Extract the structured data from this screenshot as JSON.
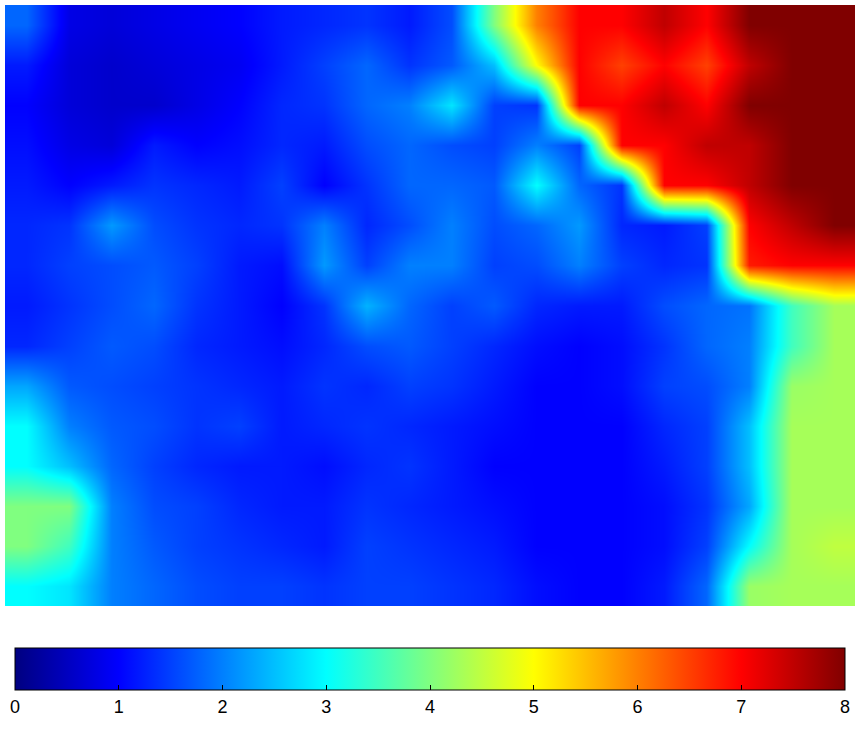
{
  "chart_data": {
    "type": "heatmap",
    "tick_labels": false,
    "zlim": [
      0,
      8
    ],
    "zticks": [
      0,
      1,
      2,
      3,
      4,
      5,
      6,
      7,
      8
    ],
    "z": [
      [
        1.8,
        0.8,
        0.7,
        0.8,
        0.9,
        1.0,
        1.2,
        1.3,
        1.4,
        1.2,
        1.6,
        4.0,
        6.0,
        7.0,
        7.0,
        7.5,
        7.0,
        8.0,
        8.0,
        8.0
      ],
      [
        1.2,
        0.7,
        0.6,
        0.7,
        0.8,
        0.9,
        1.2,
        1.5,
        1.8,
        1.4,
        1.7,
        2.5,
        5.0,
        7.0,
        6.5,
        7.0,
        6.5,
        7.5,
        8.0,
        8.0
      ],
      [
        1.0,
        0.7,
        0.6,
        0.6,
        0.8,
        1.0,
        1.3,
        1.4,
        1.8,
        2.0,
        2.8,
        1.5,
        1.4,
        7.0,
        7.0,
        7.5,
        7.0,
        8.0,
        8.0,
        8.0
      ],
      [
        1.1,
        0.8,
        0.7,
        1.2,
        1.0,
        1.1,
        1.3,
        1.2,
        1.6,
        1.8,
        1.6,
        1.5,
        2.0,
        1.5,
        7.0,
        7.0,
        7.5,
        7.5,
        8.0,
        8.0
      ],
      [
        1.2,
        1.0,
        1.2,
        1.4,
        1.3,
        1.2,
        1.5,
        1.0,
        1.4,
        1.8,
        1.8,
        1.7,
        3.0,
        1.8,
        1.4,
        7.0,
        7.0,
        7.5,
        8.0,
        8.0
      ],
      [
        1.3,
        1.4,
        2.2,
        1.6,
        1.4,
        1.3,
        1.4,
        2.0,
        1.3,
        1.6,
        2.0,
        1.6,
        1.8,
        2.2,
        1.3,
        1.2,
        1.5,
        7.0,
        7.5,
        8.0
      ],
      [
        1.3,
        1.5,
        1.6,
        1.7,
        1.5,
        1.2,
        1.1,
        2.2,
        1.5,
        2.0,
        2.0,
        1.5,
        1.6,
        2.0,
        1.5,
        1.3,
        1.4,
        6.8,
        7.0,
        7.0
      ],
      [
        1.2,
        1.4,
        1.6,
        1.8,
        1.4,
        1.2,
        1.0,
        1.4,
        2.4,
        1.8,
        1.5,
        1.7,
        1.3,
        1.2,
        1.2,
        1.6,
        1.8,
        1.9,
        3.5,
        4.3
      ],
      [
        1.3,
        1.5,
        1.7,
        1.6,
        1.3,
        1.2,
        1.1,
        1.3,
        1.6,
        1.7,
        1.5,
        1.3,
        1.1,
        1.0,
        1.1,
        1.4,
        1.8,
        2.0,
        3.5,
        4.3
      ],
      [
        2.3,
        1.7,
        1.6,
        1.5,
        1.4,
        1.3,
        1.2,
        1.4,
        1.3,
        1.5,
        1.4,
        1.2,
        1.0,
        1.0,
        1.1,
        1.5,
        1.6,
        2.0,
        4.2,
        4.3
      ],
      [
        3.0,
        2.0,
        1.7,
        1.6,
        1.4,
        1.5,
        1.2,
        1.3,
        1.4,
        1.3,
        1.2,
        1.1,
        1.0,
        1.0,
        1.0,
        1.3,
        1.5,
        2.5,
        4.3,
        4.3
      ],
      [
        3.0,
        2.5,
        1.8,
        1.5,
        1.3,
        1.2,
        1.2,
        1.1,
        1.3,
        1.4,
        1.2,
        1.0,
        1.0,
        1.0,
        1.0,
        1.2,
        1.5,
        2.5,
        4.3,
        4.3
      ],
      [
        4.0,
        4.0,
        2.0,
        1.6,
        1.5,
        1.3,
        1.2,
        1.2,
        1.4,
        1.3,
        1.2,
        1.1,
        1.0,
        1.0,
        1.0,
        1.1,
        1.4,
        2.3,
        4.3,
        4.3
      ],
      [
        4.0,
        3.5,
        2.0,
        1.7,
        1.5,
        1.4,
        1.3,
        1.2,
        1.5,
        1.4,
        1.3,
        1.2,
        1.0,
        1.0,
        1.0,
        1.1,
        1.5,
        3.0,
        4.3,
        4.5
      ],
      [
        3.0,
        2.8,
        2.0,
        1.8,
        1.6,
        1.5,
        1.5,
        1.4,
        1.5,
        1.5,
        1.4,
        1.3,
        1.1,
        1.0,
        1.0,
        1.2,
        1.8,
        4.2,
        4.3,
        4.3
      ]
    ]
  }
}
